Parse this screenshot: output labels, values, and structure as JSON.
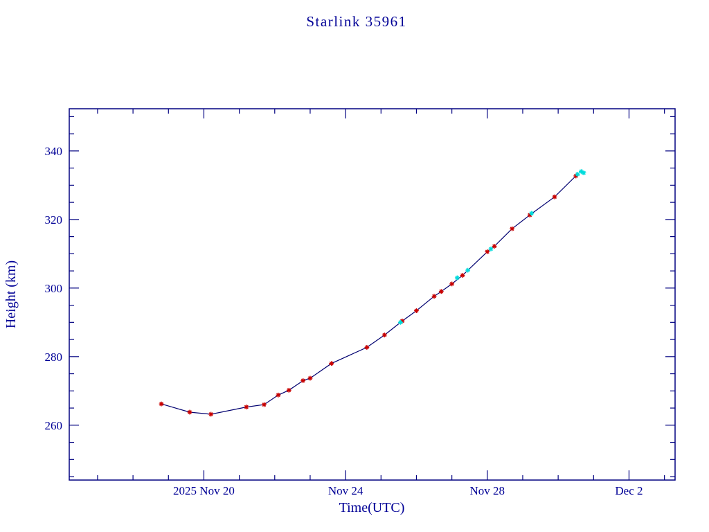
{
  "chart_data": {
    "type": "line",
    "title": "Starlink 35961",
    "xlabel": "Time(UTC)",
    "ylabel": "Height (km)",
    "colors": {
      "text": "#000096",
      "axis": "#000080",
      "line": "#000070",
      "observed_marker": "#C80000",
      "predicted_marker": "#00DCDC"
    },
    "x_axis": {
      "unit": "day of November 2025 (32 = Dec 2)",
      "min": 16.2,
      "max": 33.3,
      "minor_step": 1,
      "major_ticks": [
        {
          "value": 20,
          "label": "2025 Nov 20"
        },
        {
          "value": 24,
          "label": "Nov 24"
        },
        {
          "value": 28,
          "label": "Nov 28"
        },
        {
          "value": 32,
          "label": "Dec 2"
        }
      ]
    },
    "y_axis": {
      "unit": "km",
      "min": 244,
      "max": 352.3,
      "minor_step": 5,
      "major_ticks": [
        {
          "value": 260,
          "label": "260"
        },
        {
          "value": 280,
          "label": "280"
        },
        {
          "value": 300,
          "label": "300"
        },
        {
          "value": 320,
          "label": "320"
        },
        {
          "value": 340,
          "label": "340"
        }
      ]
    },
    "series": [
      {
        "name": "red-observed-points",
        "marker": "asterisk",
        "color": "#C80000",
        "draw_line": true,
        "points": [
          [
            18.8,
            266.2
          ],
          [
            19.6,
            263.8
          ],
          [
            20.2,
            263.2
          ],
          [
            21.2,
            265.3
          ],
          [
            21.7,
            266.0
          ],
          [
            22.1,
            268.8
          ],
          [
            22.4,
            270.2
          ],
          [
            22.8,
            273.0
          ],
          [
            23.0,
            273.7
          ],
          [
            23.6,
            278.0
          ],
          [
            24.6,
            282.7
          ],
          [
            25.1,
            286.3
          ],
          [
            25.6,
            290.4
          ],
          [
            26.0,
            293.4
          ],
          [
            26.5,
            297.6
          ],
          [
            26.7,
            299.0
          ],
          [
            27.0,
            301.2
          ],
          [
            27.3,
            303.7
          ],
          [
            28.0,
            310.6
          ],
          [
            28.2,
            312.2
          ],
          [
            28.7,
            317.3
          ],
          [
            29.2,
            321.3
          ],
          [
            29.9,
            326.6
          ],
          [
            30.5,
            332.7
          ]
        ]
      },
      {
        "name": "cyan-points",
        "marker": "asterisk",
        "color": "#00DCDC",
        "draw_line": false,
        "points": [
          [
            25.55,
            290.0
          ],
          [
            27.15,
            303.0
          ],
          [
            27.45,
            305.2
          ],
          [
            28.1,
            311.4
          ],
          [
            29.25,
            321.8
          ],
          [
            30.55,
            333.2
          ],
          [
            30.65,
            334.0
          ],
          [
            30.72,
            333.6
          ]
        ]
      }
    ],
    "layout": {
      "grid": false,
      "legend": "none",
      "ticks": "inside-all-sides"
    }
  }
}
